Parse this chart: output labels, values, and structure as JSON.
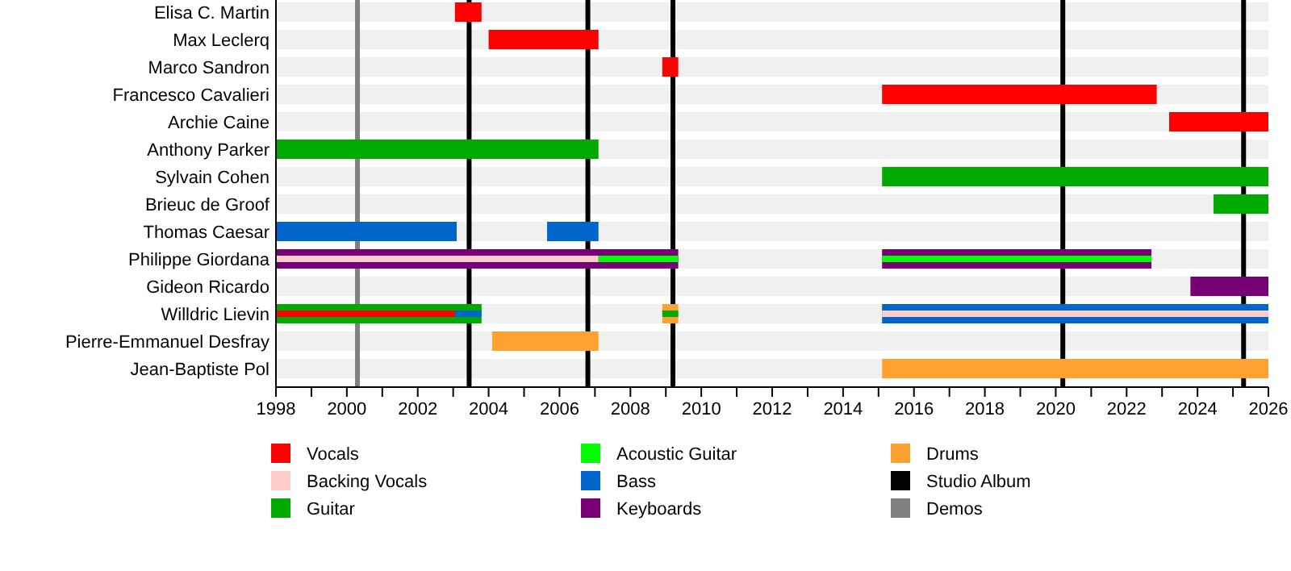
{
  "chart_data": {
    "type": "bar",
    "orientation": "horizontal",
    "legend": "bottom",
    "categories": [
      "Elisa C. Martin",
      "Max Leclerq",
      "Marco Sandron",
      "Francesco Cavalieri",
      "Archie Caine",
      "Anthony Parker",
      "Sylvain Cohen",
      "Brieuc de Groof",
      "Thomas Caesar",
      "Philippe Giordana",
      "Gideon Ricardo",
      "Willdric Lievin",
      "Pierre-Emmanuel Desfray",
      "Jean-Baptiste Pol"
    ],
    "xlim": [
      1998,
      2026
    ],
    "xticks": [
      1998,
      {
        "value": 1999,
        "label": null
      },
      2000,
      {
        "value": 2001,
        "label": null
      },
      2002,
      {
        "value": 2003,
        "label": null
      },
      2004,
      {
        "value": 2005,
        "label": null
      },
      2006,
      {
        "value": 2007,
        "label": null
      },
      2008,
      {
        "value": 2009,
        "label": null
      },
      2010,
      {
        "value": 2011,
        "label": null
      },
      2012,
      {
        "value": 2013,
        "label": null
      },
      2014,
      {
        "value": 2015,
        "label": null
      },
      2016,
      {
        "value": 2017,
        "label": null
      },
      2018,
      {
        "value": 2019,
        "label": null
      },
      2020,
      {
        "value": 2021,
        "label": null
      },
      2022,
      {
        "value": 2023,
        "label": null
      },
      2024,
      {
        "value": 2025,
        "label": null
      },
      2026
    ],
    "series": [
      {
        "name": "Vocals",
        "color": "#ff0000",
        "base": [
          2003.05,
          2004.0,
          2008.9,
          2015.1,
          2023.2,
          null,
          null,
          null,
          null,
          null,
          null,
          1998,
          null,
          null
        ],
        "values": [
          0.75,
          3.1,
          0.45,
          7.75,
          2.8,
          null,
          null,
          null,
          null,
          null,
          null,
          5.05,
          null,
          null
        ]
      },
      {
        "name": "Backing Vocals",
        "color": "#ffcccc",
        "base": [
          null,
          null,
          null,
          null,
          null,
          null,
          null,
          null,
          null,
          1998,
          null,
          2015.1,
          null,
          null
        ],
        "values": [
          null,
          null,
          null,
          null,
          null,
          null,
          null,
          null,
          null,
          9.1,
          null,
          10.9,
          null,
          null
        ]
      },
      {
        "name": "Guitar",
        "color": "#00aa00",
        "base": [
          null,
          null,
          null,
          null,
          null,
          1998,
          2015.1,
          2024.45,
          null,
          null,
          null,
          1998,
          null,
          null
        ],
        "values": [
          null,
          null,
          null,
          null,
          null,
          9.1,
          10.9,
          1.55,
          null,
          null,
          null,
          5.8,
          null,
          null
        ]
      },
      {
        "color": "#00aa00",
        "base": [
          null,
          null,
          null,
          null,
          null,
          null,
          null,
          null,
          null,
          null,
          null,
          2008.9,
          null,
          null
        ],
        "values": [
          null,
          null,
          null,
          null,
          null,
          null,
          null,
          null,
          null,
          null,
          null,
          0.45,
          null,
          null
        ]
      },
      {
        "name": "Acoustic Guitar",
        "color": "#00ff00",
        "base": [
          null,
          null,
          null,
          null,
          null,
          null,
          null,
          null,
          null,
          2007.1,
          null,
          null,
          null,
          null
        ],
        "values": [
          null,
          null,
          null,
          null,
          null,
          null,
          null,
          null,
          null,
          2.25,
          null,
          null,
          null,
          null
        ]
      },
      {
        "color": "#00ff00",
        "base": [
          null,
          null,
          null,
          null,
          null,
          null,
          null,
          null,
          null,
          2015.1,
          null,
          null,
          null,
          null
        ],
        "values": [
          null,
          null,
          null,
          null,
          null,
          null,
          null,
          null,
          null,
          7.6,
          null,
          null,
          null,
          null
        ]
      },
      {
        "name": "Bass",
        "color": "#0066cc",
        "base": [
          null,
          null,
          null,
          null,
          null,
          null,
          null,
          null,
          1998,
          null,
          null,
          2003.05,
          null,
          null
        ],
        "values": [
          null,
          null,
          null,
          null,
          null,
          null,
          null,
          null,
          5.1,
          null,
          null,
          0.75,
          null,
          null
        ]
      },
      {
        "color": "#0066cc",
        "base": [
          null,
          null,
          null,
          null,
          null,
          null,
          null,
          null,
          2005.65,
          null,
          null,
          2015.1,
          null,
          null
        ],
        "values": [
          null,
          null,
          null,
          null,
          null,
          null,
          null,
          null,
          1.45,
          null,
          null,
          10.9,
          null,
          null
        ]
      },
      {
        "name": "Keyboards",
        "color": "#770077",
        "base": [
          null,
          null,
          null,
          null,
          null,
          null,
          null,
          null,
          null,
          1998,
          2023.8,
          null,
          null,
          null
        ],
        "values": [
          null,
          null,
          null,
          null,
          null,
          null,
          null,
          null,
          null,
          11.35,
          2.2,
          null,
          null,
          null
        ]
      },
      {
        "color": "#770077",
        "base": [
          null,
          null,
          null,
          null,
          null,
          null,
          null,
          null,
          null,
          2015.1,
          null,
          null,
          null,
          null
        ],
        "values": [
          null,
          null,
          null,
          null,
          null,
          null,
          null,
          null,
          null,
          7.6,
          null,
          null,
          null,
          null
        ]
      },
      {
        "name": "Drums",
        "color": "#ffa030",
        "base": [
          null,
          null,
          null,
          null,
          null,
          null,
          null,
          null,
          null,
          null,
          null,
          2008.9,
          2004.1,
          2015.1
        ],
        "values": [
          null,
          null,
          null,
          null,
          null,
          null,
          null,
          null,
          null,
          null,
          null,
          0.45,
          3.0,
          10.9
        ]
      }
    ],
    "ref_lines": [
      {
        "axis": "x",
        "value": 2003.45,
        "label": "Studio Album",
        "color": "#000000"
      },
      {
        "axis": "x",
        "value": 2000.3,
        "label": "Demos",
        "color": "#808080"
      },
      {
        "axis": "x",
        "value": 2006.8,
        "color": "#000000"
      },
      {
        "axis": "x",
        "value": 2009.2,
        "color": "#000000"
      },
      {
        "axis": "x",
        "value": 2020.2,
        "color": "#000000"
      },
      {
        "axis": "x",
        "value": 2025.3,
        "color": "#000000"
      }
    ]
  }
}
